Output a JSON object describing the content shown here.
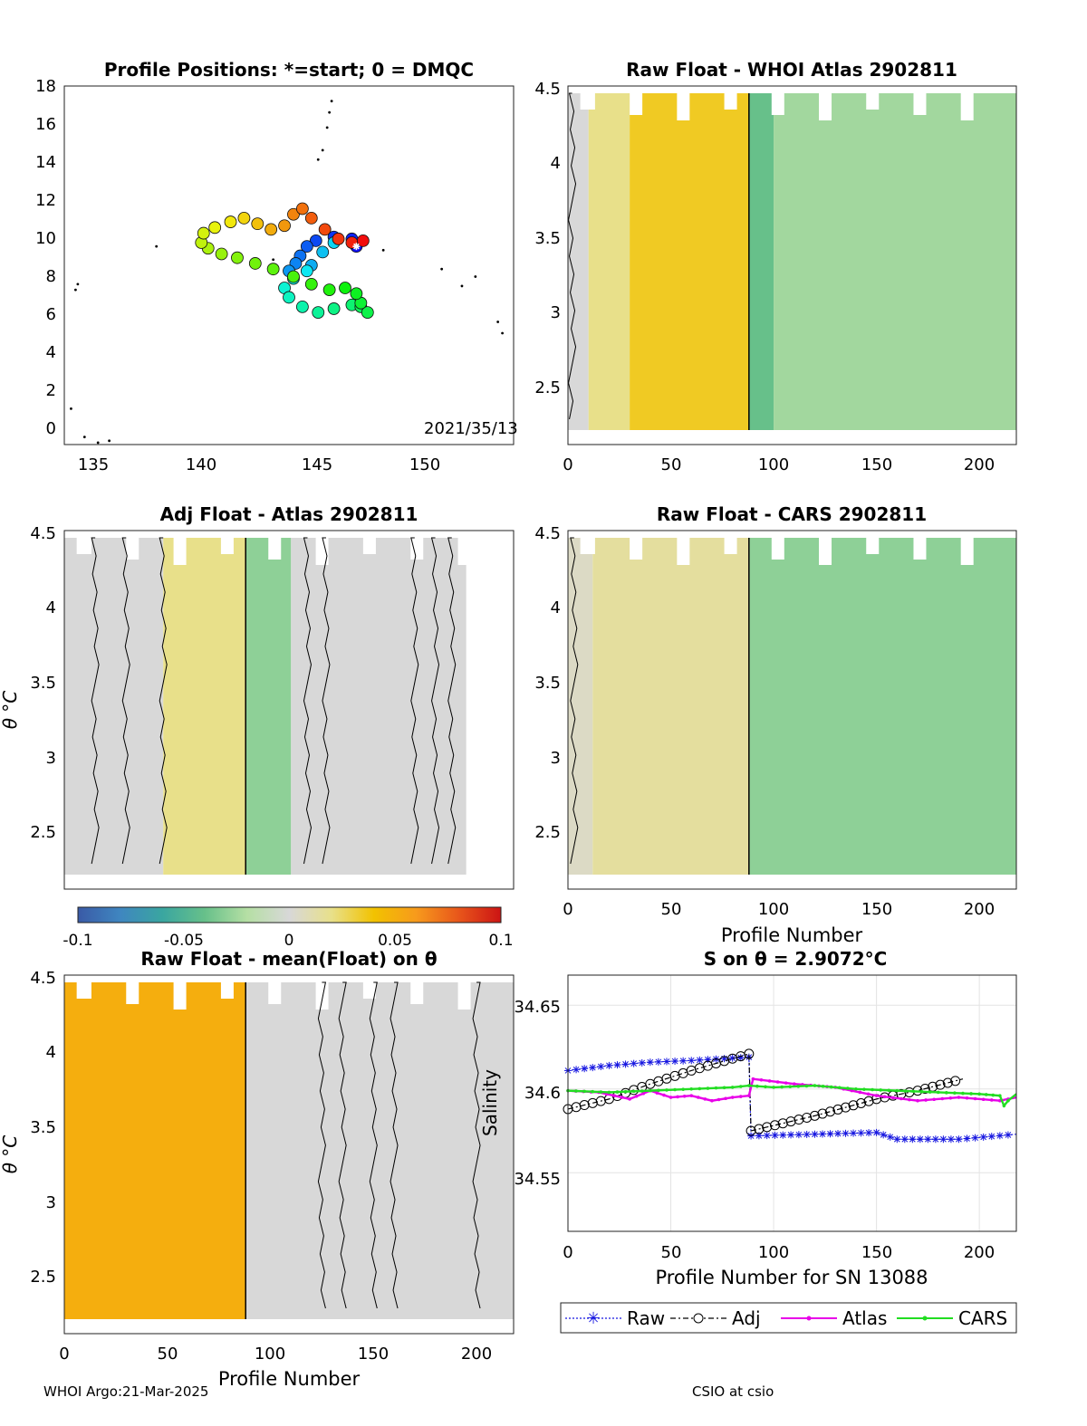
{
  "footer": {
    "left": "WHOI Argo:21-Mar-2025",
    "right": "CSIO at csio"
  },
  "colorbar": {
    "ticks": [
      "-0.1",
      "-0.05",
      "0",
      "0.05",
      "0.1"
    ],
    "colors": [
      "#3a5aa6",
      "#3f86c0",
      "#3aa6a0",
      "#67c08a",
      "#b5dfa4",
      "#d8d8d8",
      "#e8e08a",
      "#f2c200",
      "#f79a1c",
      "#e8561b",
      "#cc1414"
    ]
  },
  "panels": {
    "p1": {
      "title": "Profile Positions: *=start; 0 = DMQC",
      "xticks": [
        "135",
        "140",
        "145",
        "150"
      ],
      "yticks": [
        "18",
        "16",
        "14",
        "12",
        "10",
        "8",
        "6",
        "4",
        "2",
        "0"
      ],
      "annotation": "2021/35/13"
    },
    "p2": {
      "title": "Raw Float - WHOI Atlas  2902811",
      "xticks": [
        "0",
        "50",
        "100",
        "150",
        "200"
      ],
      "yticks": [
        "4.5",
        "4",
        "3.5",
        "3",
        "2.5"
      ]
    },
    "p3": {
      "title": "Adj Float - Atlas  2902811",
      "xticks": [],
      "yticks": [
        "4.5",
        "4",
        "3.5",
        "3",
        "2.5"
      ],
      "ylabel": "θ °C"
    },
    "p4": {
      "title": "Raw Float - CARS  2902811",
      "xticks": [
        "0",
        "50",
        "100",
        "150",
        "200"
      ],
      "yticks": [
        "4.5",
        "4",
        "3.5",
        "3",
        "2.5"
      ],
      "xlabel": "Profile Number"
    },
    "p5": {
      "title": "Raw Float - mean(Float) on θ",
      "xticks": [
        "0",
        "50",
        "100",
        "150",
        "200"
      ],
      "yticks": [
        "4.5",
        "4",
        "3.5",
        "3",
        "2.5"
      ],
      "ylabel": "θ °C",
      "xlabel": "Profile Number"
    },
    "p6": {
      "title": "S on θ = 2.9072°C",
      "xticks": [
        "0",
        "50",
        "100",
        "150",
        "200"
      ],
      "yticks": [
        "34.65",
        "34.6",
        "34.55"
      ],
      "ylabel": "Salinity",
      "xlabel": "Profile Number for SN 13088"
    }
  },
  "chart_data": [
    {
      "type": "scatter",
      "title": "Profile Positions: *=start; 0 = DMQC",
      "xlim": [
        134,
        154
      ],
      "ylim": [
        -1,
        18
      ],
      "start": [
        147,
        9.5
      ],
      "track": [
        [
          147,
          9.5
        ],
        [
          146.8,
          9.9
        ],
        [
          146,
          10.0
        ],
        [
          145.2,
          9.8
        ],
        [
          144.8,
          9.5
        ],
        [
          144.5,
          9.0
        ],
        [
          144.3,
          8.6
        ],
        [
          144.0,
          8.2
        ],
        [
          145.0,
          8.5
        ],
        [
          145.5,
          9.2
        ],
        [
          146.0,
          9.7
        ],
        [
          144.8,
          8.2
        ],
        [
          144.2,
          7.8
        ],
        [
          143.8,
          7.3
        ],
        [
          144.0,
          6.8
        ],
        [
          144.6,
          6.3
        ],
        [
          145.3,
          6.0
        ],
        [
          146.0,
          6.2
        ],
        [
          146.8,
          6.4
        ],
        [
          147.2,
          6.3
        ],
        [
          147.5,
          6.0
        ],
        [
          147.2,
          6.5
        ],
        [
          147.0,
          7.0
        ],
        [
          146.5,
          7.3
        ],
        [
          145.8,
          7.2
        ],
        [
          145.0,
          7.5
        ],
        [
          144.2,
          7.9
        ],
        [
          143.3,
          8.3
        ],
        [
          142.5,
          8.6
        ],
        [
          141.7,
          8.9
        ],
        [
          141.0,
          9.1
        ],
        [
          140.4,
          9.4
        ],
        [
          140.1,
          9.7
        ],
        [
          140.2,
          10.2
        ],
        [
          140.7,
          10.5
        ],
        [
          141.4,
          10.8
        ],
        [
          142.0,
          11.0
        ],
        [
          142.6,
          10.7
        ],
        [
          143.2,
          10.4
        ],
        [
          143.8,
          10.6
        ],
        [
          144.2,
          11.2
        ],
        [
          144.6,
          11.5
        ],
        [
          145.0,
          11.0
        ],
        [
          145.6,
          10.4
        ],
        [
          146.2,
          9.9
        ],
        [
          146.8,
          9.7
        ],
        [
          147.3,
          9.8
        ]
      ]
    },
    {
      "type": "heatmap",
      "title": "Raw Float - WHOI Atlas  2902811",
      "xlim": [
        0,
        218
      ],
      "ylim": [
        2.1,
        4.5
      ],
      "colorlim": [
        -0.1,
        0.1
      ],
      "divider_x": 88,
      "blocks": [
        {
          "x": [
            0,
            10
          ],
          "value": 0.0
        },
        {
          "x": [
            10,
            30
          ],
          "value": 0.02
        },
        {
          "x": [
            30,
            88
          ],
          "value": 0.035
        },
        {
          "x": [
            88,
            100
          ],
          "value": -0.04
        },
        {
          "x": [
            100,
            218
          ],
          "value": -0.025
        }
      ]
    },
    {
      "type": "heatmap",
      "title": "Adj Float - Atlas  2902811",
      "xlim": [
        0,
        218
      ],
      "ylim": [
        2.1,
        4.5
      ],
      "colorlim": [
        -0.1,
        0.1
      ],
      "divider_x": 88,
      "blocks": [
        {
          "x": [
            0,
            48
          ],
          "value": 0.0
        },
        {
          "x": [
            48,
            88
          ],
          "value": 0.02
        },
        {
          "x": [
            88,
            110
          ],
          "value": -0.03
        },
        {
          "x": [
            110,
            195
          ],
          "value": 0.0
        }
      ]
    },
    {
      "type": "heatmap",
      "title": "Raw Float - CARS  2902811",
      "xlim": [
        0,
        218
      ],
      "ylim": [
        2.1,
        4.5
      ],
      "colorlim": [
        -0.1,
        0.1
      ],
      "divider_x": 88,
      "blocks": [
        {
          "x": [
            0,
            12
          ],
          "value": 0.005
        },
        {
          "x": [
            12,
            88
          ],
          "value": 0.015
        },
        {
          "x": [
            88,
            218
          ],
          "value": -0.03
        }
      ]
    },
    {
      "type": "heatmap",
      "title": "Raw Float - mean(Float) on θ",
      "xlim": [
        0,
        218
      ],
      "ylim": [
        2.1,
        4.5
      ],
      "colorlim": [
        -0.1,
        0.1
      ],
      "divider_x": 88,
      "blocks": [
        {
          "x": [
            0,
            88
          ],
          "value": 0.05
        },
        {
          "x": [
            88,
            218
          ],
          "value": 0.0
        }
      ]
    },
    {
      "type": "line",
      "title": "S on θ = 2.9072°C",
      "xlabel": "Profile Number for SN 13088",
      "ylabel": "Salinity",
      "xlim": [
        0,
        218
      ],
      "ylim": [
        34.515,
        34.668
      ],
      "series": [
        {
          "name": "Raw",
          "color": "#1515e0",
          "x": [
            0,
            20,
            40,
            60,
            88,
            89,
            120,
            150,
            160,
            190,
            218
          ],
          "values": [
            34.611,
            34.614,
            34.616,
            34.617,
            34.619,
            34.572,
            34.573,
            34.574,
            34.57,
            34.57,
            34.573
          ]
        },
        {
          "name": "Adj",
          "color": "#000000",
          "x": [
            0,
            20,
            40,
            60,
            88,
            89,
            120,
            150,
            170,
            192
          ],
          "values": [
            34.588,
            34.594,
            34.603,
            34.611,
            34.621,
            34.575,
            34.584,
            34.594,
            34.599,
            34.606
          ]
        },
        {
          "name": "Atlas",
          "color": "#e800e8",
          "x": [
            0,
            15,
            30,
            40,
            50,
            60,
            70,
            80,
            88,
            90,
            110,
            130,
            150,
            170,
            190,
            210,
            218
          ],
          "values": [
            34.599,
            34.598,
            34.594,
            34.599,
            34.595,
            34.596,
            34.593,
            34.595,
            34.596,
            34.606,
            34.603,
            34.601,
            34.596,
            34.593,
            34.595,
            34.593,
            34.595
          ]
        },
        {
          "name": "CARS",
          "color": "#22dd22",
          "x": [
            0,
            20,
            40,
            60,
            80,
            88,
            100,
            120,
            140,
            160,
            180,
            200,
            210,
            212,
            214,
            218
          ],
          "values": [
            34.599,
            34.598,
            34.599,
            34.6,
            34.601,
            34.602,
            34.601,
            34.602,
            34.6,
            34.599,
            34.598,
            34.597,
            34.596,
            34.59,
            34.593,
            34.597
          ]
        }
      ]
    }
  ]
}
